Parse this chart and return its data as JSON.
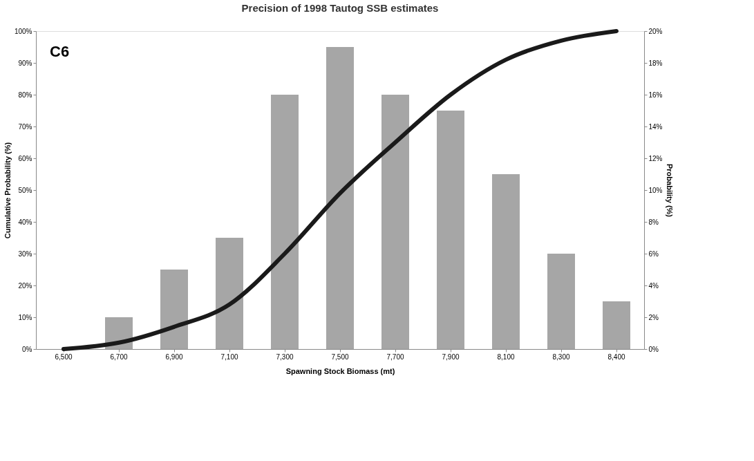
{
  "chart_data": {
    "type": "bar",
    "title": "Precision of 1998 Tautog SSB estimates",
    "xlabel": "Spawning Stock Biomass (mt)",
    "ylabel": "Cumulative Probability (%)",
    "y2label": "Probability (%)",
    "categories": [
      "6,500",
      "6,700",
      "6,900",
      "7,100",
      "7,300",
      "7,500",
      "7,700",
      "7,900",
      "8,100",
      "8,300",
      "8,400"
    ],
    "series": [
      {
        "axis": "y2",
        "color": "#a6a6a6",
        "values": [
          0,
          2,
          5,
          7,
          16,
          19,
          16,
          15,
          11,
          6,
          3
        ]
      },
      {
        "type": "line",
        "axis": "y",
        "color": "#1a1a1a",
        "values": [
          0,
          2,
          7,
          14,
          30,
          49,
          65,
          80,
          91,
          97,
          100
        ]
      }
    ],
    "ylim": [
      0,
      100
    ],
    "yticks": [
      {
        "value": 0,
        "label": "0%"
      },
      {
        "value": 10,
        "label": "10%"
      },
      {
        "value": 20,
        "label": "20%"
      },
      {
        "value": 30,
        "label": "30%"
      },
      {
        "value": 40,
        "label": "40%"
      },
      {
        "value": 50,
        "label": "50%"
      },
      {
        "value": 60,
        "label": "60%"
      },
      {
        "value": 70,
        "label": "70%"
      },
      {
        "value": 80,
        "label": "80%"
      },
      {
        "value": 90,
        "label": "90%"
      },
      {
        "value": 100,
        "label": "100%"
      }
    ],
    "y2lim": [
      0,
      20
    ],
    "y2ticks": [
      {
        "value": 0,
        "label": "0%"
      },
      {
        "value": 2,
        "label": "2%"
      },
      {
        "value": 4,
        "label": "4%"
      },
      {
        "value": 6,
        "label": "6%"
      },
      {
        "value": 8,
        "label": "8%"
      },
      {
        "value": 10,
        "label": "10%"
      },
      {
        "value": 12,
        "label": "12%"
      },
      {
        "value": 14,
        "label": "14%"
      },
      {
        "value": 16,
        "label": "16%"
      },
      {
        "value": 18,
        "label": "18%"
      },
      {
        "value": 20,
        "label": "20%"
      }
    ],
    "annotations": [
      "C6"
    ],
    "grid": false,
    "marker": "none",
    "line_style": "solid"
  }
}
